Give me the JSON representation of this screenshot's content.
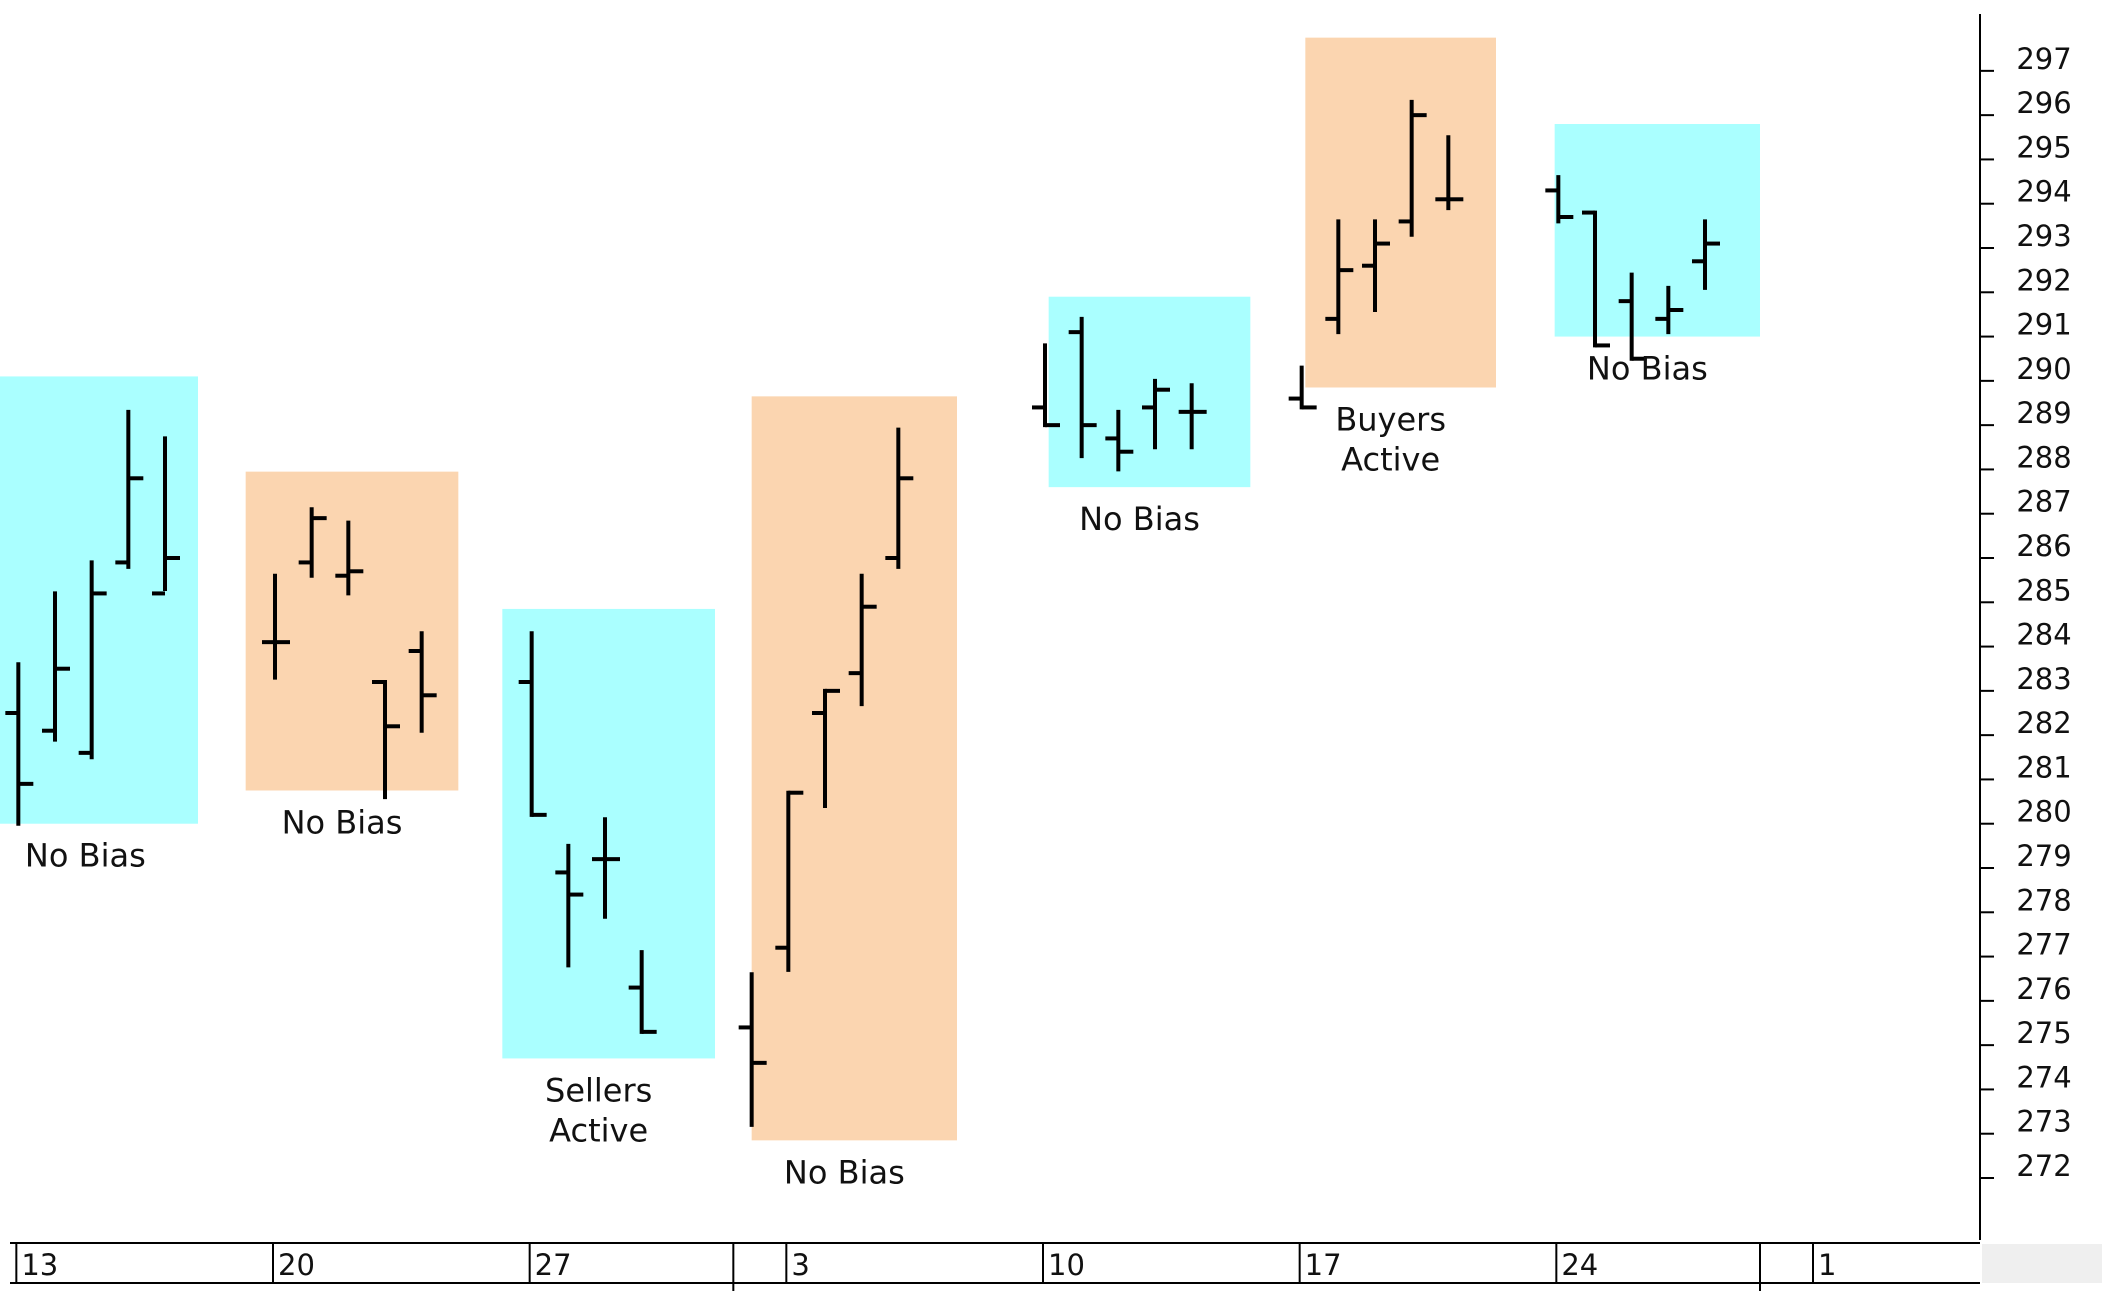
{
  "chart_data": {
    "type": "bar",
    "subtype": "ohlc",
    "title": "",
    "xlabel": "",
    "ylabel": "",
    "ylim": [
      270.6,
      298.6
    ],
    "yticks": [
      272,
      273,
      274,
      275,
      276,
      277,
      278,
      279,
      280,
      281,
      282,
      283,
      284,
      285,
      286,
      287,
      288,
      289,
      290,
      291,
      292,
      293,
      294,
      295,
      296,
      297
    ],
    "y_axis_position": "right",
    "grid": false,
    "x_axis": {
      "type": "trading-day index",
      "range": [
        -0.5,
        53.5
      ],
      "ticks": [
        {
          "label": "13",
          "x": 0
        },
        {
          "label": "20",
          "x": 7
        },
        {
          "label": "27",
          "x": 14
        },
        {
          "label": "3",
          "x": 21
        },
        {
          "label": "10",
          "x": 28
        },
        {
          "label": "17",
          "x": 35
        },
        {
          "label": "24",
          "x": 42
        },
        {
          "label": "1",
          "x": 49
        }
      ],
      "period_separators": [
        19.5,
        47.5
      ]
    },
    "zones": [
      {
        "label": "No Bias",
        "color": "#aaffff",
        "x_from": -0.7,
        "x_to": 4.9,
        "y_high": 290.1,
        "y_low": 280.0
      },
      {
        "label": "No Bias",
        "color": "#fbd5b0",
        "x_from": 6.2,
        "x_to": 12.0,
        "y_high": 287.95,
        "y_low": 280.75
      },
      {
        "label": "Sellers\nActive",
        "color": "#aaffff",
        "x_from": 13.2,
        "x_to": 19.0,
        "y_high": 284.85,
        "y_low": 274.7
      },
      {
        "label": "No Bias",
        "color": "#fbd5b0",
        "x_from": 20.0,
        "x_to": 25.6,
        "y_high": 289.65,
        "y_low": 272.85
      },
      {
        "label": "No Bias",
        "color": "#aaffff",
        "x_from": 28.1,
        "x_to": 33.6,
        "y_high": 291.9,
        "y_low": 287.6
      },
      {
        "label": "Buyers\nActive",
        "color": "#fbd5b0",
        "x_from": 35.1,
        "x_to": 40.3,
        "y_high": 297.75,
        "y_low": 289.85
      },
      {
        "label": "No Bias",
        "color": "#aaffff",
        "x_from": 41.9,
        "x_to": 47.5,
        "y_high": 295.8,
        "y_low": 291.0
      }
    ],
    "series": [
      {
        "values": [
          {
            "x": 0,
            "open": 282.5,
            "high": 283.6,
            "low": 280.0,
            "close": 280.9
          },
          {
            "x": 1,
            "open": 282.1,
            "high": 285.2,
            "low": 281.9,
            "close": 283.5
          },
          {
            "x": 2,
            "open": 281.6,
            "high": 285.9,
            "low": 281.5,
            "close": 285.2
          },
          {
            "x": 3,
            "open": 285.9,
            "high": 289.3,
            "low": 285.8,
            "close": 287.8
          },
          {
            "x": 4,
            "open": 285.2,
            "high": 288.7,
            "low": 285.3,
            "close": 286.0
          },
          {
            "x": 7,
            "open": 284.1,
            "high": 285.6,
            "low": 283.3,
            "close": 284.1
          },
          {
            "x": 8,
            "open": 285.9,
            "high": 287.1,
            "low": 285.6,
            "close": 286.9
          },
          {
            "x": 9,
            "open": 285.6,
            "high": 286.8,
            "low": 285.2,
            "close": 285.7
          },
          {
            "x": 10,
            "open": 283.2,
            "high": 283.2,
            "low": 280.6,
            "close": 282.2
          },
          {
            "x": 11,
            "open": 283.9,
            "high": 284.3,
            "low": 282.1,
            "close": 282.9
          },
          {
            "x": 14,
            "open": 283.2,
            "high": 284.3,
            "low": 280.2,
            "close": 280.2
          },
          {
            "x": 15,
            "open": 278.9,
            "high": 279.5,
            "low": 276.8,
            "close": 278.4
          },
          {
            "x": 16,
            "open": 279.2,
            "high": 280.1,
            "low": 277.9,
            "close": 279.2
          },
          {
            "x": 17,
            "open": 276.3,
            "high": 277.1,
            "low": 275.3,
            "close": 275.3
          },
          {
            "x": 20,
            "open": 275.4,
            "high": 276.6,
            "low": 273.2,
            "close": 274.6
          },
          {
            "x": 21,
            "open": 277.2,
            "high": 280.7,
            "low": 276.7,
            "close": 280.7
          },
          {
            "x": 22,
            "open": 282.5,
            "high": 283.0,
            "low": 280.4,
            "close": 283.0
          },
          {
            "x": 23,
            "open": 283.4,
            "high": 285.6,
            "low": 282.7,
            "close": 284.9
          },
          {
            "x": 24,
            "open": 286.0,
            "high": 288.9,
            "low": 285.8,
            "close": 287.8
          },
          {
            "x": 28,
            "open": 289.4,
            "high": 290.8,
            "low": 289.0,
            "close": 289.0
          },
          {
            "x": 29,
            "open": 291.1,
            "high": 291.4,
            "low": 288.3,
            "close": 289.0
          },
          {
            "x": 30,
            "open": 288.7,
            "high": 289.3,
            "low": 288.0,
            "close": 288.4
          },
          {
            "x": 31,
            "open": 289.4,
            "high": 290.0,
            "low": 288.5,
            "close": 289.8
          },
          {
            "x": 32,
            "open": 289.3,
            "high": 289.9,
            "low": 288.5,
            "close": 289.3
          },
          {
            "x": 35,
            "open": 289.6,
            "high": 290.3,
            "low": 289.4,
            "close": 289.4
          },
          {
            "x": 36,
            "open": 291.4,
            "high": 293.6,
            "low": 291.1,
            "close": 292.5
          },
          {
            "x": 37,
            "open": 292.6,
            "high": 293.6,
            "low": 291.6,
            "close": 293.1
          },
          {
            "x": 38,
            "open": 293.6,
            "high": 296.3,
            "low": 293.3,
            "close": 296.0
          },
          {
            "x": 39,
            "open": 294.1,
            "high": 295.5,
            "low": 293.9,
            "close": 294.1
          },
          {
            "x": 42,
            "open": 294.3,
            "high": 294.6,
            "low": 293.6,
            "close": 293.7
          },
          {
            "x": 43,
            "open": 293.8,
            "high": 293.8,
            "low": 290.8,
            "close": 290.8
          },
          {
            "x": 44,
            "open": 291.8,
            "high": 292.4,
            "low": 290.5,
            "close": 290.5
          },
          {
            "x": 45,
            "open": 291.4,
            "high": 292.1,
            "low": 291.1,
            "close": 291.6
          },
          {
            "x": 46,
            "open": 292.7,
            "high": 293.6,
            "low": 292.1,
            "close": 293.1
          }
        ]
      }
    ]
  }
}
